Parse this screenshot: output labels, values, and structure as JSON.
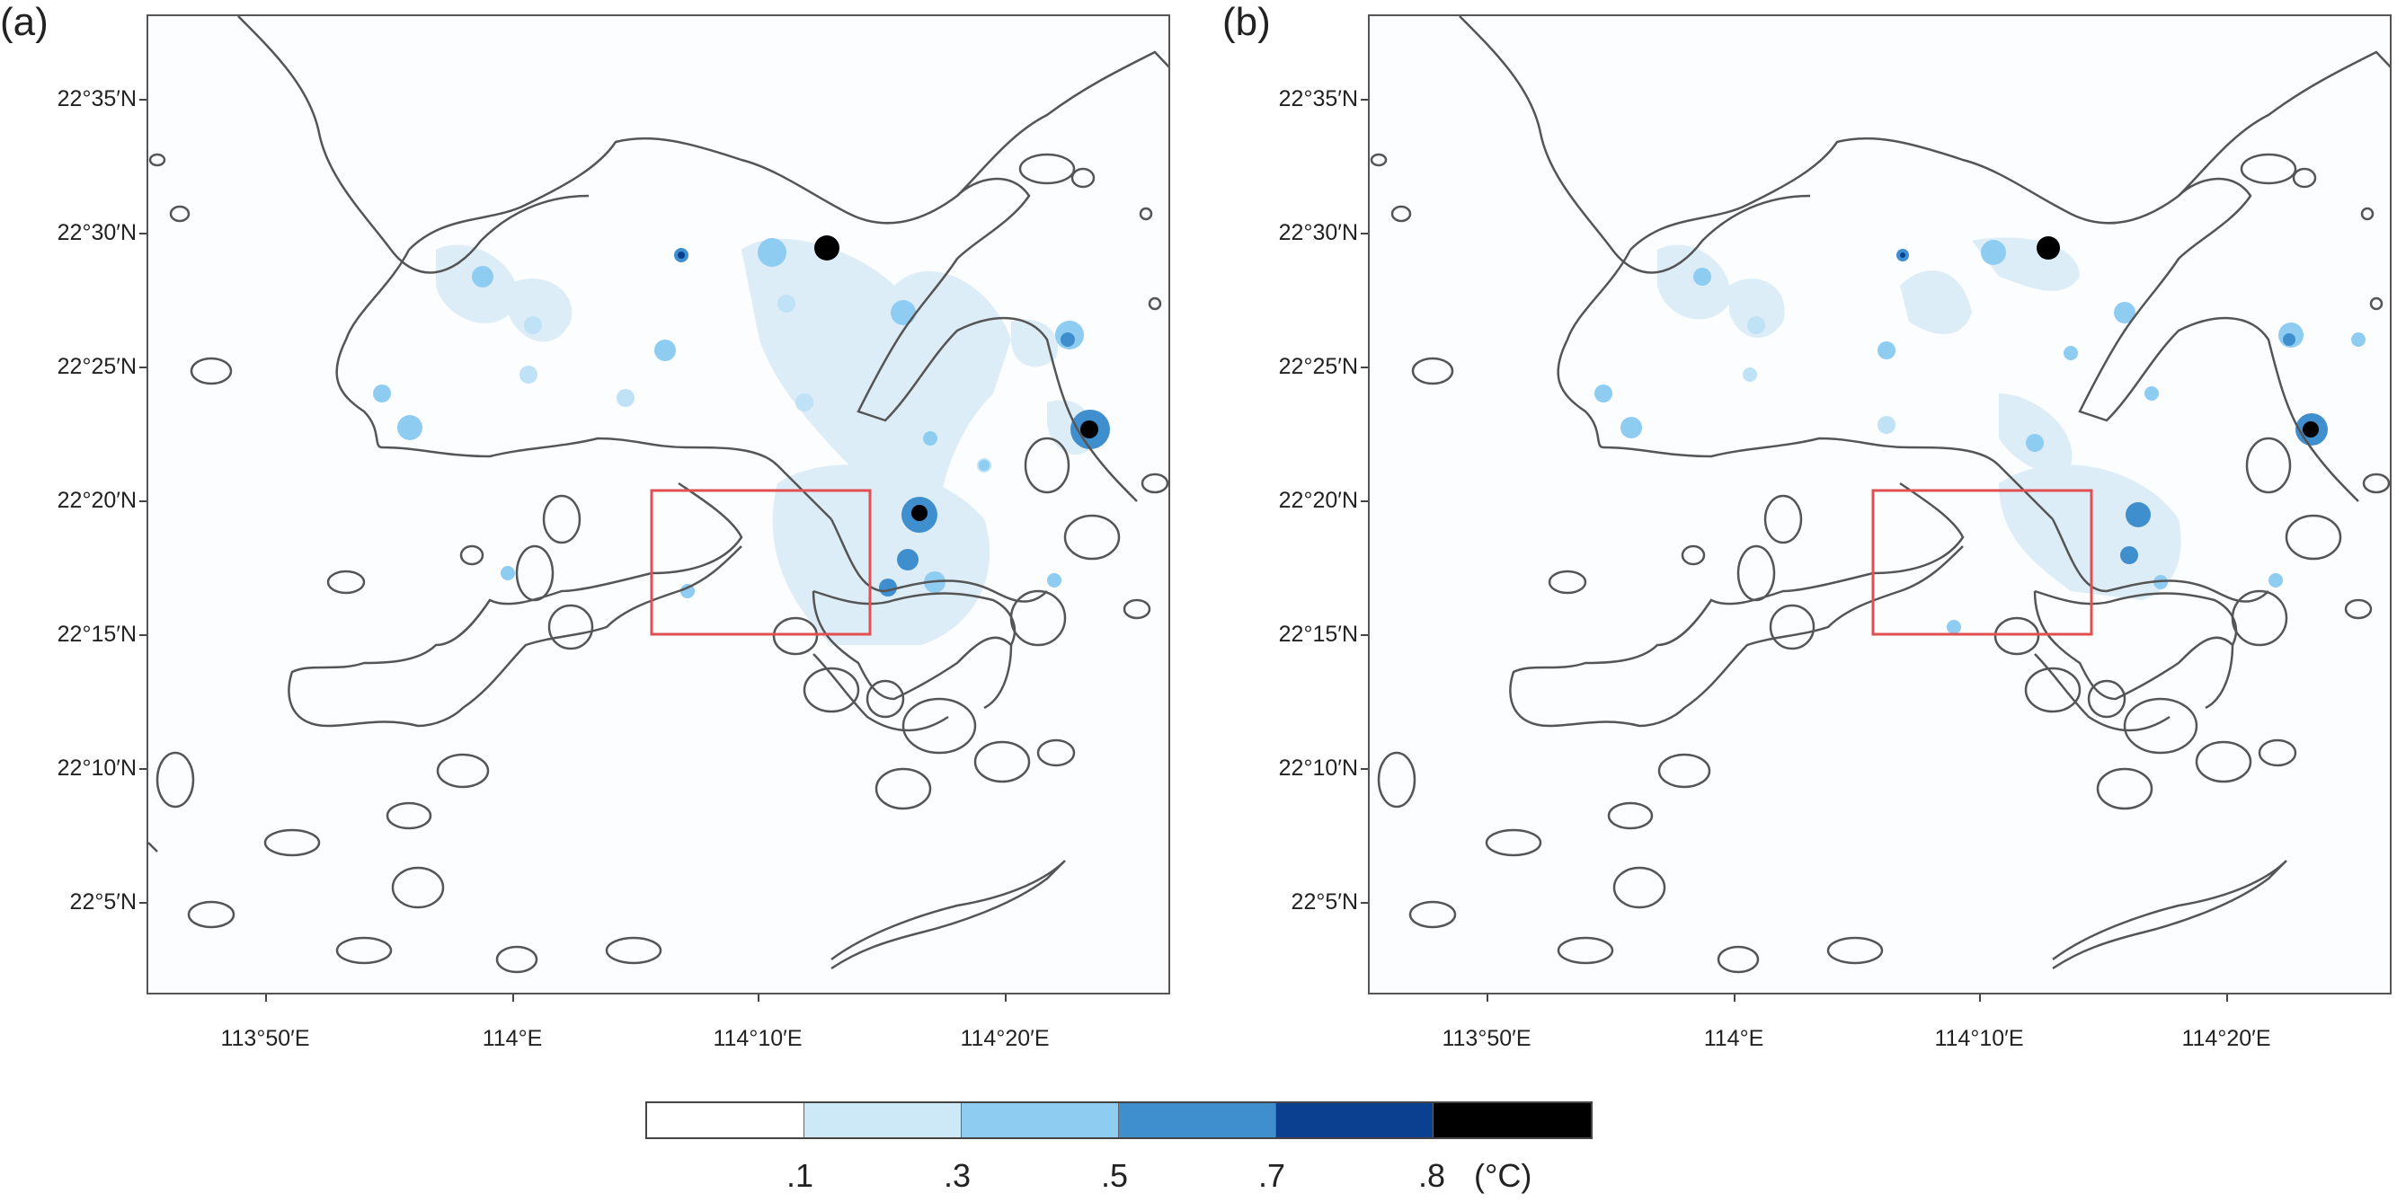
{
  "panels": [
    {
      "label": "(a)"
    },
    {
      "label": "(b)"
    }
  ],
  "lat_ticks": [
    "22°35′N",
    "22°30′N",
    "22°25′N",
    "22°20′N",
    "22°15′N",
    "22°10′N",
    "22°5′N"
  ],
  "lon_ticks": [
    "113°50′E",
    "114°E",
    "114°10′E",
    "114°20′E"
  ],
  "colorbar": {
    "colors": [
      "#ffffff",
      "#cde8f7",
      "#8ecdf1",
      "#3f8fcf",
      "#0b3f8f",
      "#000000"
    ],
    "labels": [
      ".1",
      ".3",
      ".5",
      ".7",
      ".8"
    ],
    "unit": "(°C)"
  },
  "highlight_box_color": "#e05050",
  "coastline_color": "#555555"
}
